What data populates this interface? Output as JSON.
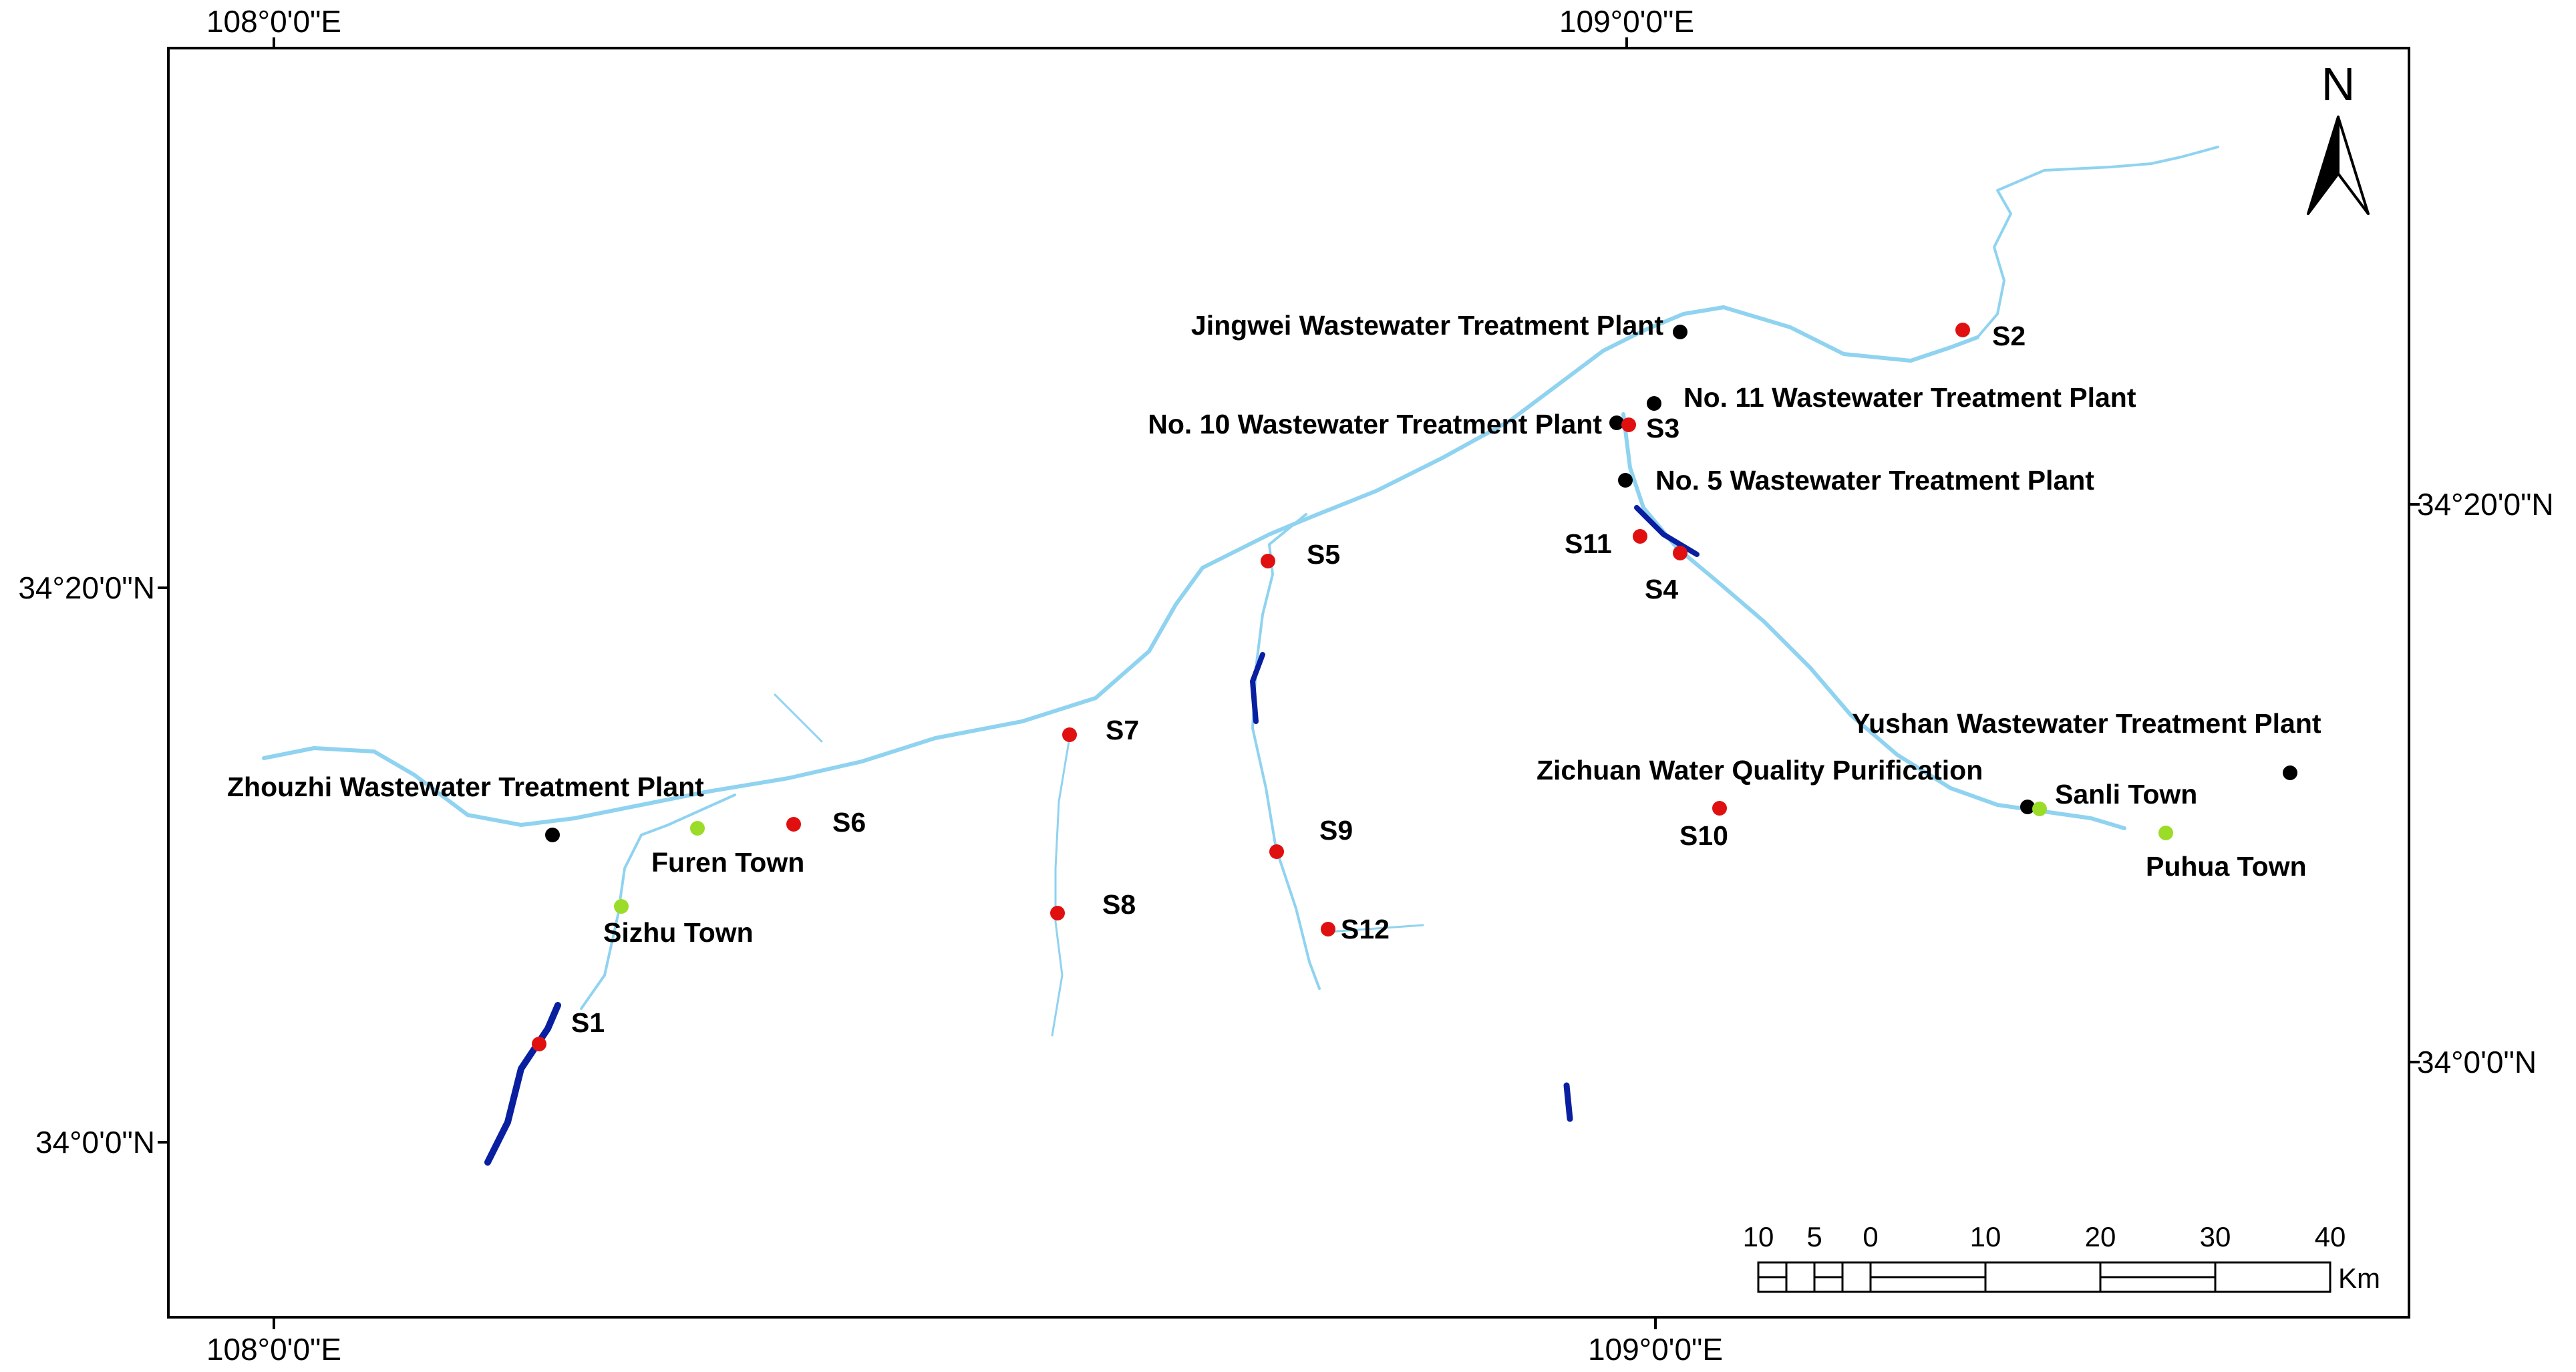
{
  "coordinates": {
    "top_left": "108°0'0\"E",
    "top_right": "109°0'0\"E",
    "bottom_left": "108°0'0\"E",
    "bottom_right": "109°0'0\"E",
    "left_upper": "34°20'0\"N",
    "left_lower": "34°0'0\"N",
    "right_upper": "34°20'0\"N",
    "right_lower": "34°0'0\"N"
  },
  "north_arrow": {
    "label": "N"
  },
  "scale_bar": {
    "ticks": [
      "10",
      "5",
      "0",
      "10",
      "20",
      "30",
      "40"
    ],
    "unit": "Km"
  },
  "sampling_sites": [
    {
      "id": "s1",
      "label": "S1"
    },
    {
      "id": "s2",
      "label": "S2"
    },
    {
      "id": "s3",
      "label": "S3"
    },
    {
      "id": "s4",
      "label": "S4"
    },
    {
      "id": "s5",
      "label": "S5"
    },
    {
      "id": "s6",
      "label": "S6"
    },
    {
      "id": "s7",
      "label": "S7"
    },
    {
      "id": "s8",
      "label": "S8"
    },
    {
      "id": "s9",
      "label": "S9"
    },
    {
      "id": "s10",
      "label": "S10"
    },
    {
      "id": "s11",
      "label": "S11"
    },
    {
      "id": "s12",
      "label": "S12"
    }
  ],
  "treatment_plants": [
    {
      "id": "jingwei",
      "label": "Jingwei Wastewater Treatment Plant"
    },
    {
      "id": "no11",
      "label": "No. 11 Wastewater Treatment Plant"
    },
    {
      "id": "no10",
      "label": "No. 10 Wastewater Treatment Plant"
    },
    {
      "id": "no5",
      "label": "No. 5 Wastewater Treatment Plant"
    },
    {
      "id": "zhouzhi",
      "label": "Zhouzhi Wastewater Treatment Plant"
    },
    {
      "id": "yushan",
      "label": "Yushan Wastewater Treatment Plant"
    },
    {
      "id": "zichuan",
      "label": "Zichuan Water Quality Purification"
    }
  ],
  "towns": [
    {
      "id": "furen",
      "label": "Furen Town"
    },
    {
      "id": "sizhu",
      "label": "Sizhu Town"
    },
    {
      "id": "sanli",
      "label": "Sanli Town"
    },
    {
      "id": "puhua",
      "label": "Puhua Town"
    }
  ],
  "colors": {
    "sampling_site": "#e01010",
    "treatment_plant": "#000000",
    "town": "#9bdc28",
    "river_light": "#8fd3f0",
    "reservoir": "#0a1fa0"
  }
}
